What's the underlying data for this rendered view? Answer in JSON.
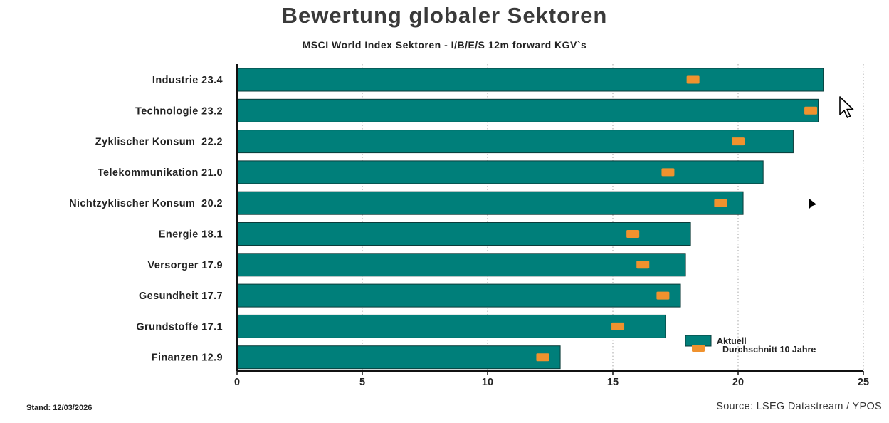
{
  "header": {
    "title": "Bewertung globaler Sektoren",
    "subtitle": "MSCI World Index Sektoren - I/B/E/S 12m forward KGV`s"
  },
  "footer": {
    "stand": "Stand: 12/03/2026",
    "source": "Source: LSEG Datastream / YPOS"
  },
  "colors": {
    "bar": "#007f7a",
    "marker": "#f0922e",
    "grid": "#b5b5b5"
  },
  "chart_data": {
    "type": "bar",
    "orientation": "horizontal",
    "title": "Bewertung globaler Sektoren",
    "subtitle": "MSCI World Index Sektoren - I/B/E/S 12m forward KGV`s",
    "categories": [
      "Industrie 23.4",
      "Technologie 23.2",
      "Zyklischer Konsum  22.2",
      "Telekommunikation 21.0",
      "Nichtzyklischer Konsum  20.2",
      "Energie 18.1",
      "Versorger 17.9",
      "Gesundheit 17.7",
      "Grundstoffe 17.1",
      "Finanzen 12.9"
    ],
    "series": [
      {
        "name": "Aktuell",
        "kind": "bar",
        "values": [
          23.4,
          23.2,
          22.2,
          21.0,
          20.2,
          18.1,
          17.9,
          17.7,
          17.1,
          12.9
        ]
      },
      {
        "name": "Durchschnitt 10 Jahre",
        "kind": "marker",
        "values": [
          18.2,
          22.9,
          20.0,
          17.2,
          19.3,
          15.8,
          16.2,
          17.0,
          15.2,
          12.2
        ]
      }
    ],
    "xlim": [
      0,
      25
    ],
    "xticks": [
      0,
      5,
      10,
      15,
      20,
      25
    ],
    "xtick_labels": [
      "0",
      "5",
      "10",
      "15",
      "20",
      "25"
    ],
    "grid": true,
    "grid_style": "dotted vertical",
    "legend_position": "bottom-right"
  }
}
